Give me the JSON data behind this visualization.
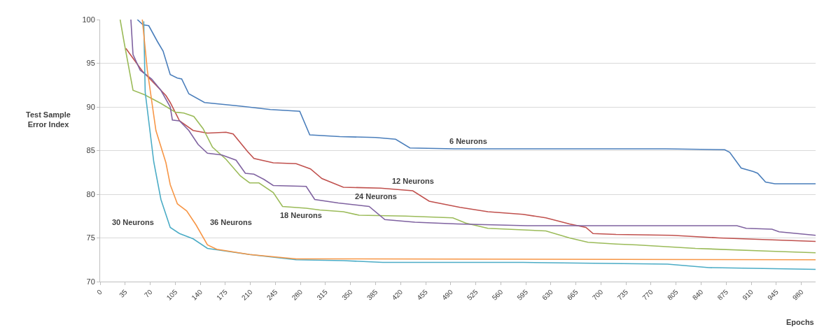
{
  "chart_data": {
    "type": "line",
    "xlabel": "Epochs",
    "ylabel": "Test Sample Error Index",
    "xlim": [
      0,
      1000
    ],
    "xticks": [
      0,
      35,
      70,
      105,
      140,
      175,
      210,
      245,
      280,
      315,
      350,
      385,
      420,
      455,
      490,
      525,
      560,
      595,
      630,
      665,
      700,
      735,
      770,
      805,
      840,
      875,
      910,
      945,
      980
    ],
    "ylim": [
      70,
      100
    ],
    "yticks": [
      70,
      75,
      80,
      85,
      90,
      95,
      100
    ],
    "grid": "y",
    "marker": "none",
    "line_style": "solid",
    "series": [
      {
        "color": "#4a7ebb",
        "x": [
          52,
          60,
          68,
          80,
          88,
          98,
          108,
          114,
          124,
          146,
          195,
          238,
          279,
          293,
          335,
          385,
          413,
          433,
          495,
          790,
          873,
          880,
          896,
          913,
          919,
          930,
          943,
          1000
        ],
        "values": [
          100,
          99.4,
          99.3,
          97.5,
          96.4,
          93.7,
          93.3,
          93.2,
          91.5,
          90.5,
          90.1,
          89.7,
          89.5,
          86.8,
          86.6,
          86.5,
          86.3,
          85.3,
          85.2,
          85.2,
          85.1,
          84.8,
          83.0,
          82.6,
          82.4,
          81.4,
          81.2,
          81.2
        ]
      },
      {
        "color": "#c0504d",
        "x": [
          36,
          59,
          72,
          78,
          92,
          98,
          111,
          130,
          150,
          176,
          186,
          206,
          215,
          242,
          274,
          294,
          310,
          340,
          392,
          437,
          460,
          503,
          542,
          591,
          623,
          656,
          679,
          689,
          721,
          799,
          865,
          1000
        ],
        "values": [
          96.7,
          94.1,
          93,
          92.5,
          91.3,
          90.5,
          88.4,
          87.3,
          87,
          87.1,
          86.9,
          84.9,
          84.1,
          83.6,
          83.5,
          82.9,
          81.8,
          80.8,
          80.7,
          80.4,
          79.2,
          78.5,
          78.0,
          77.7,
          77.3,
          76.6,
          76.2,
          75.5,
          75.4,
          75.3,
          75.0,
          74.6
        ]
      },
      {
        "color": "#9bbb59",
        "x": [
          28,
          34,
          46,
          62,
          85,
          105,
          117,
          131,
          144,
          157,
          176,
          196,
          209,
          222,
          242,
          255,
          288,
          307,
          340,
          362,
          427,
          493,
          511,
          542,
          623,
          656,
          682,
          721,
          750,
          832,
          930,
          1000
        ],
        "values": [
          100,
          97.2,
          91.9,
          91.4,
          90.4,
          89.4,
          89.3,
          88.9,
          87.5,
          85.4,
          84.0,
          82.1,
          81.3,
          81.3,
          80.2,
          78.6,
          78.4,
          78.2,
          78.0,
          77.6,
          77.5,
          77.3,
          76.7,
          76.1,
          75.8,
          75.0,
          74.5,
          74.3,
          74.2,
          73.8,
          73.5,
          73.3
        ]
      },
      {
        "color": "#7f62a0",
        "x": [
          43,
          46,
          56,
          72,
          85,
          98,
          101,
          111,
          124,
          137,
          150,
          170,
          190,
          203,
          215,
          229,
          242,
          288,
          300,
          333,
          376,
          398,
          440,
          499,
          597,
          721,
          890,
          903,
          939,
          949,
          1000
        ],
        "values": [
          100,
          96,
          94.2,
          93.2,
          91.9,
          90,
          88.5,
          88.4,
          87.3,
          85.7,
          84.7,
          84.5,
          83.9,
          82.4,
          82.3,
          81.7,
          81,
          80.9,
          79.4,
          79.0,
          78.6,
          77.1,
          76.8,
          76.6,
          76.4,
          76.4,
          76.4,
          76.1,
          76.0,
          75.7,
          75.3
        ]
      },
      {
        "color": "#4bacc6",
        "x": [
          61,
          63,
          75,
          85,
          98,
          111,
          130,
          150,
          209,
          274,
          340,
          395,
          591,
          793,
          851,
          1000
        ],
        "values": [
          99.8,
          91.7,
          83.7,
          79.4,
          76.2,
          75.5,
          74.9,
          73.8,
          73.1,
          72.5,
          72.4,
          72.2,
          72.2,
          72.0,
          71.6,
          71.4
        ]
      },
      {
        "color": "#f79646",
        "x": [
          59,
          66,
          78,
          92,
          98,
          108,
          121,
          134,
          150,
          163,
          209,
          274,
          340,
          1000
        ],
        "values": [
          100,
          94.2,
          87.3,
          83.6,
          81.1,
          78.9,
          78.1,
          76.5,
          74.2,
          73.7,
          73.1,
          72.6,
          72.6,
          72.5
        ]
      }
    ],
    "annotations": [
      "6 Neurons",
      "12 Neurons",
      "24 Neurons",
      "18 Neurons",
      "36 Neurons",
      "30 Neurons"
    ]
  }
}
